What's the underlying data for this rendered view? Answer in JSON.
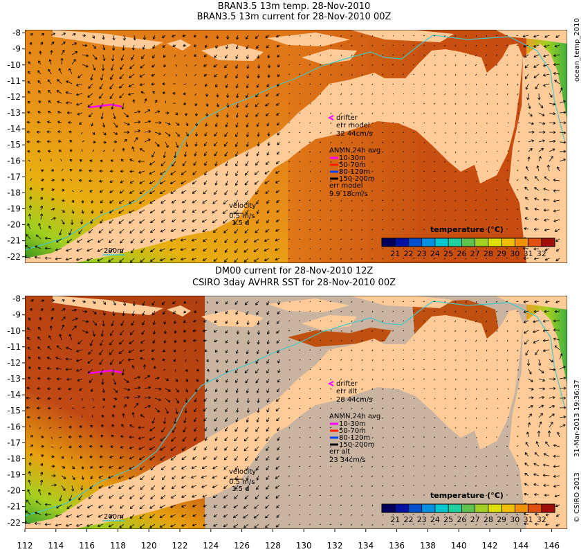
{
  "top_panel": {
    "title_line1": "BRAN3.5 13m temp. 28-Nov-2010",
    "title_line2": "BRAN3.5 13m current for 28-Nov-2010 00Z",
    "drifter_label": "drifter",
    "err_label": "err model",
    "err_value": "32 44cm/s",
    "anmn_title": "ANMN 24h avg",
    "depths": [
      "10-30m",
      "50-70m",
      "80-120m",
      "150-200m"
    ],
    "err2_label": "err model",
    "err2_value": "9.9 18cm/s",
    "velocity_label": "velocity",
    "velocity_value": "0.5 m/s",
    "velocity_time": "1.5 d",
    "isobath_label": "200m",
    "colorbar_title": "temperature (°C)"
  },
  "bottom_panel": {
    "title_line1": "DM00 current for 28-Nov-2010 12Z",
    "title_line2": "CSIRO 3day AVHRR SST for 28-Nov-2010 00Z",
    "drifter_label": "drifter",
    "err_label": "err alt",
    "err_value": "28 44cm/s",
    "anmn_title": "ANMN 24h avg",
    "depths": [
      "10-30m",
      "50-70m",
      "80-120m",
      "150-200m"
    ],
    "err2_label": "err alt",
    "err2_value": "23 34cm/s",
    "velocity_label": "velocity",
    "velocity_value": "0.5 m/s",
    "velocity_time": "1.5 d",
    "isobath_label": "200m",
    "colorbar_title": "temperature (°C)"
  },
  "side_labels": {
    "top": "ocean_temp_2010",
    "bottom": "31-Mar-2013 19:36:37",
    "copyright": "© CSIRO 2013"
  },
  "axes": {
    "lat_ticks": [
      -8,
      -9,
      -10,
      -11,
      -12,
      -13,
      -14,
      -15,
      -16,
      -17,
      -18,
      -19,
      -20,
      -21,
      -22
    ],
    "lon_ticks": [
      112,
      114,
      116,
      118,
      120,
      122,
      124,
      126,
      128,
      130,
      132,
      134,
      136,
      138,
      140,
      142,
      144,
      146
    ],
    "lat_range": [
      -22.4,
      -7.8
    ],
    "lon_range": [
      112,
      147
    ]
  },
  "colorbar": {
    "ticks": [
      21,
      22,
      23,
      24,
      25,
      26,
      27,
      28,
      29,
      30,
      31,
      32
    ],
    "range": [
      20,
      33
    ]
  },
  "colors": {
    "land": "#ffcc99",
    "no_data": "#c8b4a0",
    "isobath": "#40c8c8",
    "ocean_warm": "#e07818",
    "drifter": "#ff00ff",
    "depth_colors": [
      "#ff00ff",
      "#ff2000",
      "#0040ff",
      "#000000"
    ]
  }
}
